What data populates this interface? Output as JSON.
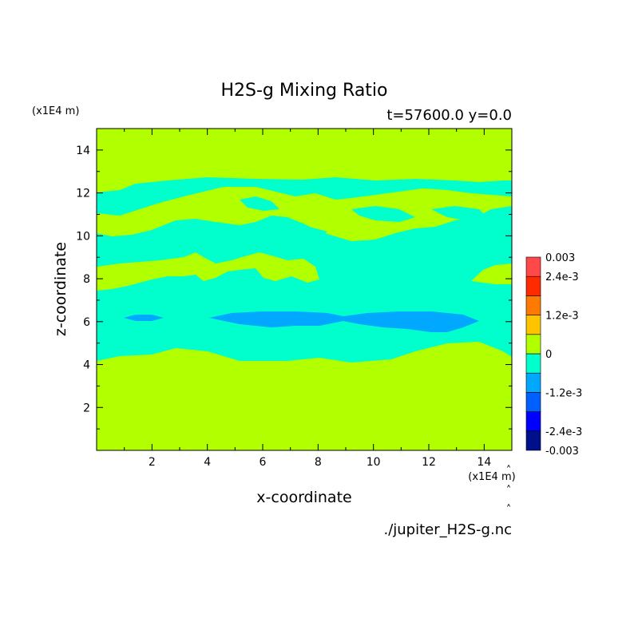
{
  "chart_data": {
    "type": "heatmap",
    "title": "H2S-g Mixing Ratio",
    "subtitle": "t=57600.0 y=0.0",
    "xlabel": "x-coordinate",
    "ylabel": "z-coordinate",
    "x_unit": "(x1E4 m)",
    "y_unit": "(x1E4 m)",
    "source_file": "./jupiter_H2S-g.nc",
    "xlim": [
      0,
      15
    ],
    "ylim": [
      0,
      15
    ],
    "x_ticks": [
      2,
      4,
      6,
      8,
      10,
      12,
      14
    ],
    "y_ticks": [
      2,
      4,
      6,
      8,
      10,
      12,
      14
    ],
    "colorbar": {
      "tick_labels": [
        "0.003",
        "2.4e-3",
        "1.2e-3",
        "0",
        "-1.2e-3",
        "-2.4e-3",
        "-0.003"
      ],
      "tick_values": [
        0.003,
        0.0024,
        0.0012,
        0,
        -0.0012,
        -0.0024,
        -0.003
      ],
      "levels": [
        -0.003,
        -0.0024,
        -0.0018,
        -0.0012,
        -0.0006,
        0,
        0.0006,
        0.0012,
        0.0018,
        0.0024,
        0.003
      ],
      "colors": [
        "#00108a",
        "#0000ff",
        "#0060ff",
        "#00a8ff",
        "#00ffcc",
        "#b2ff00",
        "#ffc400",
        "#ff7a00",
        "#ff2a00",
        "#ff4848"
      ]
    },
    "regions": [
      {
        "value_range": [
          0,
          0.0006
        ],
        "color": "#b2ff00",
        "description_z": "background, z<4.5 and z>12.5"
      },
      {
        "value_range": [
          -0.0006,
          0
        ],
        "color": "#00ffcc",
        "z_range": [
          4.2,
          12.7
        ]
      },
      {
        "value_range": [
          -0.0012,
          -0.0006
        ],
        "color": "#00a8ff",
        "z_range": [
          5.5,
          6.4
        ]
      }
    ]
  }
}
